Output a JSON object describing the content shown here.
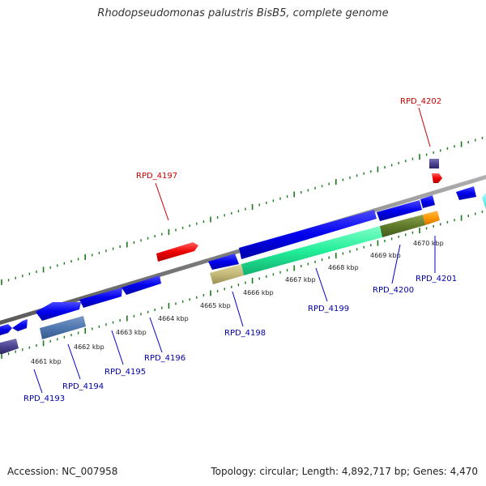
{
  "title": "Rhodopseudomonas palustris BisB5, complete genome",
  "footer": {
    "accession": "Accession: NC_007958",
    "summary": "Topology: circular; Length: 4,892,717 bp; Genes: 4,470"
  },
  "colors": {
    "backbone": "#808080",
    "tick": "#1a7a1a",
    "plus_label": "#cc0000",
    "minus_label": "#0000aa",
    "cds_blue": "#0000ee"
  },
  "kbp_ticks": [
    "4661 kbp",
    "4662 kbp",
    "4663 kbp",
    "4664 kbp",
    "4665 kbp",
    "4666 kbp",
    "4667 kbp",
    "4668 kbp",
    "4669 kbp",
    "4670 kbp"
  ],
  "genes": [
    {
      "id": "RPD_4193",
      "strand": "-"
    },
    {
      "id": "RPD_4194",
      "strand": "-"
    },
    {
      "id": "RPD_4195",
      "strand": "-"
    },
    {
      "id": "RPD_4196",
      "strand": "-"
    },
    {
      "id": "RPD_4197",
      "strand": "+"
    },
    {
      "id": "RPD_4198",
      "strand": "-"
    },
    {
      "id": "RPD_4199",
      "strand": "-"
    },
    {
      "id": "RPD_4200",
      "strand": "-"
    },
    {
      "id": "RPD_4201",
      "strand": "-"
    },
    {
      "id": "RPD_4202",
      "strand": "+"
    }
  ]
}
